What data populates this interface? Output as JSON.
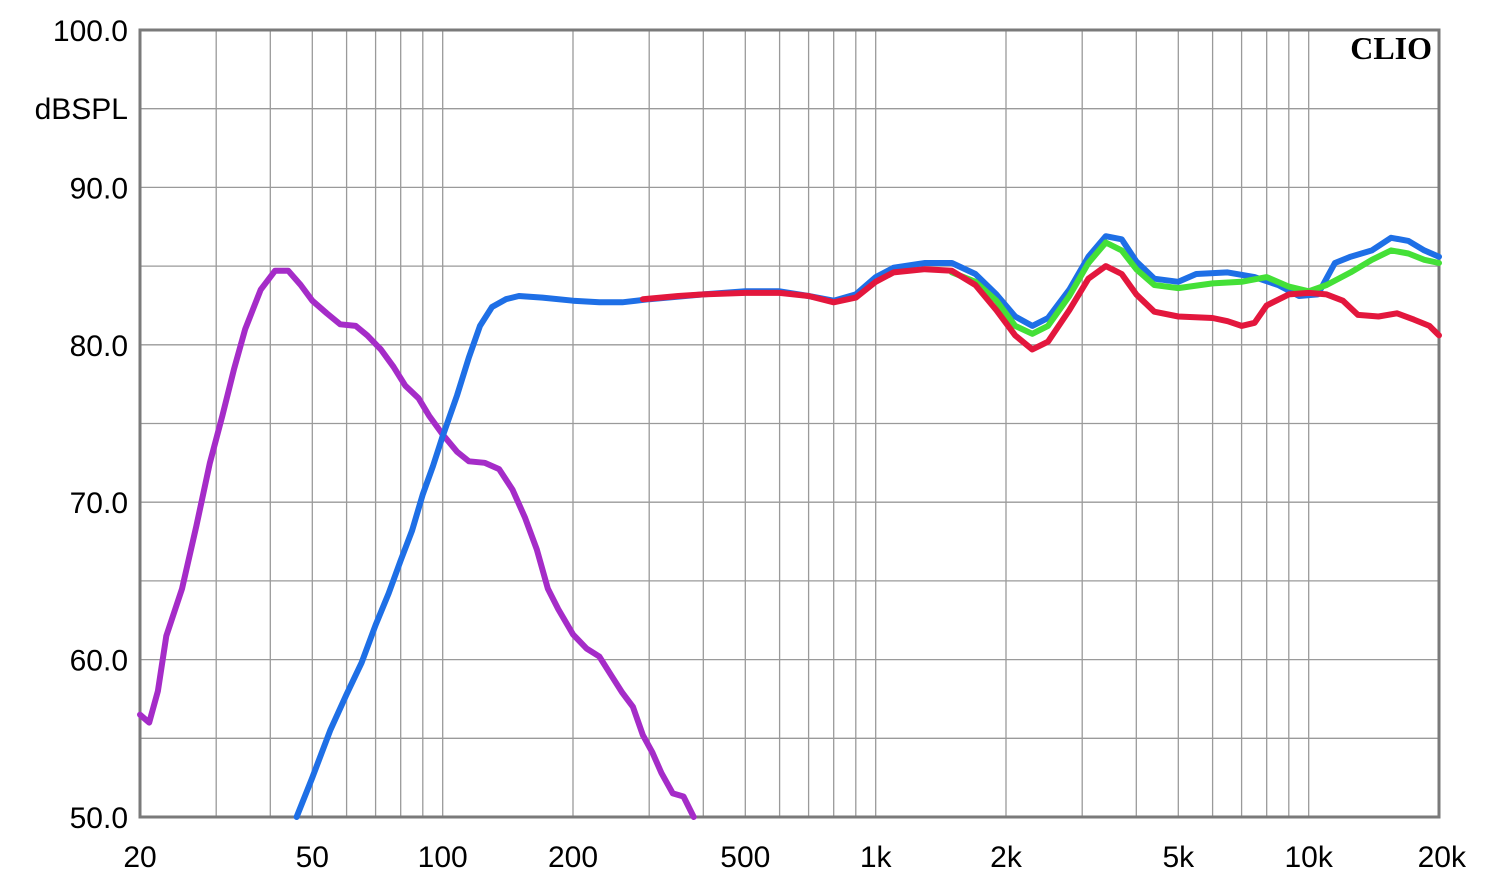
{
  "chart_data": {
    "type": "line",
    "x_scale": "log",
    "xlim": [
      20,
      20000
    ],
    "ylim": [
      50,
      100
    ],
    "ylabel": "dBSPL",
    "brand": "CLIO",
    "grid": true,
    "y_ticks": [
      {
        "value": 100,
        "label": "100.0"
      },
      {
        "value": 90,
        "label": "90.0"
      },
      {
        "value": 80,
        "label": "80.0"
      },
      {
        "value": 70,
        "label": "70.0"
      },
      {
        "value": 60,
        "label": "60.0"
      },
      {
        "value": 50,
        "label": "50.0"
      }
    ],
    "y_minor_ticks": [
      95,
      85,
      75,
      65,
      55
    ],
    "x_ticks": [
      {
        "value": 20,
        "label": "20"
      },
      {
        "value": 50,
        "label": "50"
      },
      {
        "value": 100,
        "label": "100"
      },
      {
        "value": 200,
        "label": "200"
      },
      {
        "value": 500,
        "label": "500"
      },
      {
        "value": 1000,
        "label": "1k"
      },
      {
        "value": 2000,
        "label": "2k"
      },
      {
        "value": 5000,
        "label": "5k"
      },
      {
        "value": 10000,
        "label": "10k"
      },
      {
        "value": 20000,
        "label": "20k"
      }
    ],
    "series": [
      {
        "color": "#a52cc8",
        "points": [
          [
            20,
            56.5
          ],
          [
            21,
            56
          ],
          [
            22,
            58
          ],
          [
            23,
            61.5
          ],
          [
            25,
            64.5
          ],
          [
            27,
            68.5
          ],
          [
            29,
            72.5
          ],
          [
            31,
            75.5
          ],
          [
            33,
            78.5
          ],
          [
            35,
            81
          ],
          [
            38,
            83.5
          ],
          [
            41,
            84.7
          ],
          [
            44,
            84.7
          ],
          [
            47,
            83.8
          ],
          [
            50,
            82.8
          ],
          [
            54,
            82
          ],
          [
            58,
            81.3
          ],
          [
            63,
            81.2
          ],
          [
            67,
            80.6
          ],
          [
            72,
            79.7
          ],
          [
            77,
            78.6
          ],
          [
            82,
            77.4
          ],
          [
            88,
            76.6
          ],
          [
            93,
            75.5
          ],
          [
            100,
            74.3
          ],
          [
            108,
            73.2
          ],
          [
            115,
            72.6
          ],
          [
            125,
            72.5
          ],
          [
            135,
            72.1
          ],
          [
            145,
            70.8
          ],
          [
            155,
            69
          ],
          [
            165,
            67
          ],
          [
            175,
            64.5
          ],
          [
            185,
            63.2
          ],
          [
            200,
            61.6
          ],
          [
            215,
            60.7
          ],
          [
            230,
            60.2
          ],
          [
            245,
            59
          ],
          [
            260,
            57.9
          ],
          [
            275,
            57
          ],
          [
            290,
            55.2
          ],
          [
            305,
            54.1
          ],
          [
            320,
            52.8
          ],
          [
            340,
            51.5
          ],
          [
            360,
            51.3
          ],
          [
            380,
            50
          ]
        ]
      },
      {
        "color": "#1e6fe6",
        "points": [
          [
            46,
            50
          ],
          [
            50,
            52.5
          ],
          [
            55,
            55.5
          ],
          [
            60,
            57.8
          ],
          [
            65,
            59.8
          ],
          [
            70,
            62.2
          ],
          [
            75,
            64.2
          ],
          [
            80,
            66.3
          ],
          [
            85,
            68.2
          ],
          [
            90,
            70.5
          ],
          [
            95,
            72.3
          ],
          [
            100,
            74.2
          ],
          [
            108,
            76.8
          ],
          [
            115,
            79.2
          ],
          [
            122,
            81.2
          ],
          [
            130,
            82.4
          ],
          [
            140,
            82.9
          ],
          [
            150,
            83.1
          ],
          [
            170,
            83
          ],
          [
            200,
            82.8
          ],
          [
            230,
            82.7
          ],
          [
            260,
            82.7
          ],
          [
            300,
            82.9
          ],
          [
            400,
            83.2
          ],
          [
            500,
            83.4
          ],
          [
            600,
            83.4
          ],
          [
            700,
            83.1
          ],
          [
            800,
            82.8
          ],
          [
            900,
            83.2
          ],
          [
            1000,
            84.3
          ],
          [
            1100,
            84.9
          ],
          [
            1300,
            85.2
          ],
          [
            1500,
            85.2
          ],
          [
            1700,
            84.5
          ],
          [
            1900,
            83.2
          ],
          [
            2100,
            81.8
          ],
          [
            2300,
            81.2
          ],
          [
            2500,
            81.7
          ],
          [
            2800,
            83.5
          ],
          [
            3100,
            85.6
          ],
          [
            3400,
            86.9
          ],
          [
            3700,
            86.7
          ],
          [
            4000,
            85.3
          ],
          [
            4400,
            84.2
          ],
          [
            5000,
            84
          ],
          [
            5500,
            84.5
          ],
          [
            6500,
            84.6
          ],
          [
            7500,
            84.3
          ],
          [
            8500,
            83.8
          ],
          [
            9500,
            83.1
          ],
          [
            10500,
            83.2
          ],
          [
            11500,
            85.2
          ],
          [
            12500,
            85.6
          ],
          [
            14000,
            86
          ],
          [
            15500,
            86.8
          ],
          [
            17000,
            86.6
          ],
          [
            18500,
            86
          ],
          [
            20000,
            85.6
          ]
        ]
      },
      {
        "color": "#44e037",
        "points": [
          [
            1500,
            84.6
          ],
          [
            1700,
            84
          ],
          [
            1900,
            82.8
          ],
          [
            2100,
            81.2
          ],
          [
            2300,
            80.7
          ],
          [
            2500,
            81.2
          ],
          [
            2800,
            83.1
          ],
          [
            3100,
            85.2
          ],
          [
            3400,
            86.5
          ],
          [
            3700,
            86
          ],
          [
            4000,
            84.8
          ],
          [
            4400,
            83.8
          ],
          [
            5000,
            83.6
          ],
          [
            6000,
            83.9
          ],
          [
            7000,
            84
          ],
          [
            8000,
            84.3
          ],
          [
            9000,
            83.7
          ],
          [
            10000,
            83.4
          ],
          [
            11000,
            83.8
          ],
          [
            12500,
            84.6
          ],
          [
            14000,
            85.4
          ],
          [
            15500,
            86
          ],
          [
            17000,
            85.8
          ],
          [
            18500,
            85.4
          ],
          [
            20000,
            85.2
          ]
        ]
      },
      {
        "color": "#e3173d",
        "points": [
          [
            290,
            82.9
          ],
          [
            350,
            83.1
          ],
          [
            400,
            83.2
          ],
          [
            500,
            83.3
          ],
          [
            600,
            83.3
          ],
          [
            700,
            83.1
          ],
          [
            800,
            82.7
          ],
          [
            900,
            83
          ],
          [
            1000,
            84
          ],
          [
            1100,
            84.6
          ],
          [
            1300,
            84.8
          ],
          [
            1500,
            84.7
          ],
          [
            1700,
            83.8
          ],
          [
            1900,
            82.2
          ],
          [
            2100,
            80.6
          ],
          [
            2300,
            79.7
          ],
          [
            2500,
            80.2
          ],
          [
            2800,
            82.2
          ],
          [
            3100,
            84.2
          ],
          [
            3400,
            85
          ],
          [
            3700,
            84.5
          ],
          [
            4000,
            83.2
          ],
          [
            4400,
            82.1
          ],
          [
            5000,
            81.8
          ],
          [
            6000,
            81.7
          ],
          [
            6500,
            81.5
          ],
          [
            7000,
            81.2
          ],
          [
            7500,
            81.4
          ],
          [
            8000,
            82.5
          ],
          [
            9000,
            83.2
          ],
          [
            10000,
            83.3
          ],
          [
            11000,
            83.2
          ],
          [
            12000,
            82.8
          ],
          [
            13000,
            81.9
          ],
          [
            14500,
            81.8
          ],
          [
            16000,
            82
          ],
          [
            17500,
            81.6
          ],
          [
            19000,
            81.2
          ],
          [
            20000,
            80.6
          ]
        ]
      }
    ]
  }
}
